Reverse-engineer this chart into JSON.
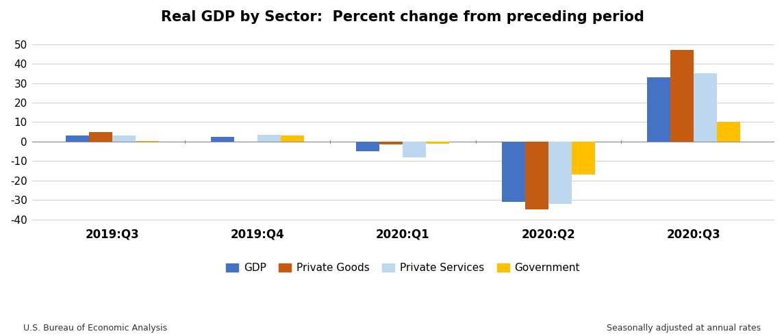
{
  "title": "Real GDP by Sector:  Percent change from preceding period",
  "quarters": [
    "2019:Q3",
    "2019:Q4",
    "2020:Q1",
    "2020:Q2",
    "2020:Q3"
  ],
  "series": {
    "GDP": [
      3,
      2.5,
      -5,
      -31,
      33
    ],
    "Private Goods": [
      5,
      0,
      -1.5,
      -35,
      47
    ],
    "Private Services": [
      3,
      3.5,
      -8,
      -32,
      35
    ],
    "Government": [
      0.5,
      3,
      -1,
      -17,
      10
    ]
  },
  "colors": {
    "GDP": "#4472C4",
    "Private Goods": "#C55A11",
    "Private Services": "#BDD7EE",
    "Government": "#FFC000"
  },
  "ylim": [
    -42,
    56
  ],
  "yticks": [
    -40,
    -30,
    -20,
    -10,
    0,
    10,
    20,
    30,
    40,
    50
  ],
  "bar_width": 0.16,
  "background_color": "#ffffff",
  "footnote_left": "U.S. Bureau of Economic Analysis",
  "footnote_right": "Seasonally adjusted at annual rates",
  "legend_labels": [
    "GDP",
    "Private Goods",
    "Private Services",
    "Government"
  ]
}
